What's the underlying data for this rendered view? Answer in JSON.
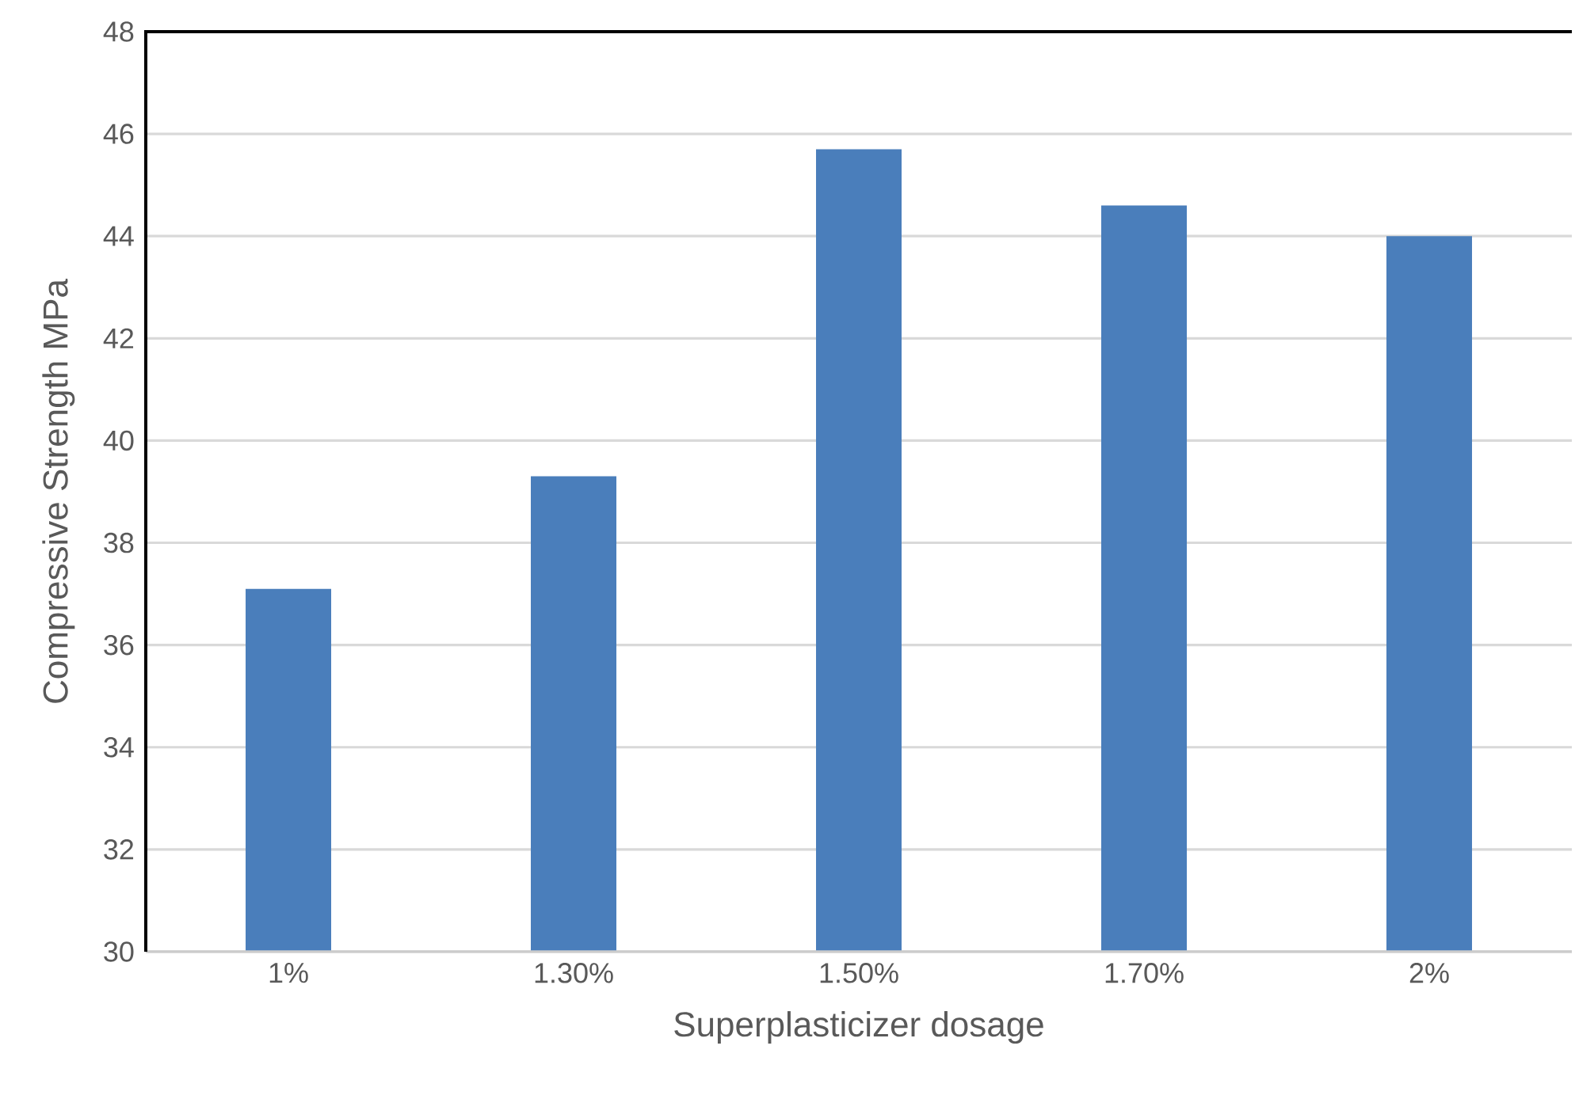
{
  "chart_data": {
    "type": "bar",
    "xlabel": "Superplasticizer dosage",
    "ylabel": "Compressive Strength MPa",
    "categories": [
      "1%",
      "1.30%",
      "1.50%",
      "1.70%",
      "2%"
    ],
    "values": [
      37.1,
      39.3,
      45.7,
      44.6,
      44.0
    ],
    "color": "#4a7ebb",
    "ylim": [
      30,
      48
    ],
    "yticks": [
      30,
      32,
      34,
      36,
      38,
      40,
      42,
      44,
      46,
      48
    ],
    "grid": "y"
  }
}
